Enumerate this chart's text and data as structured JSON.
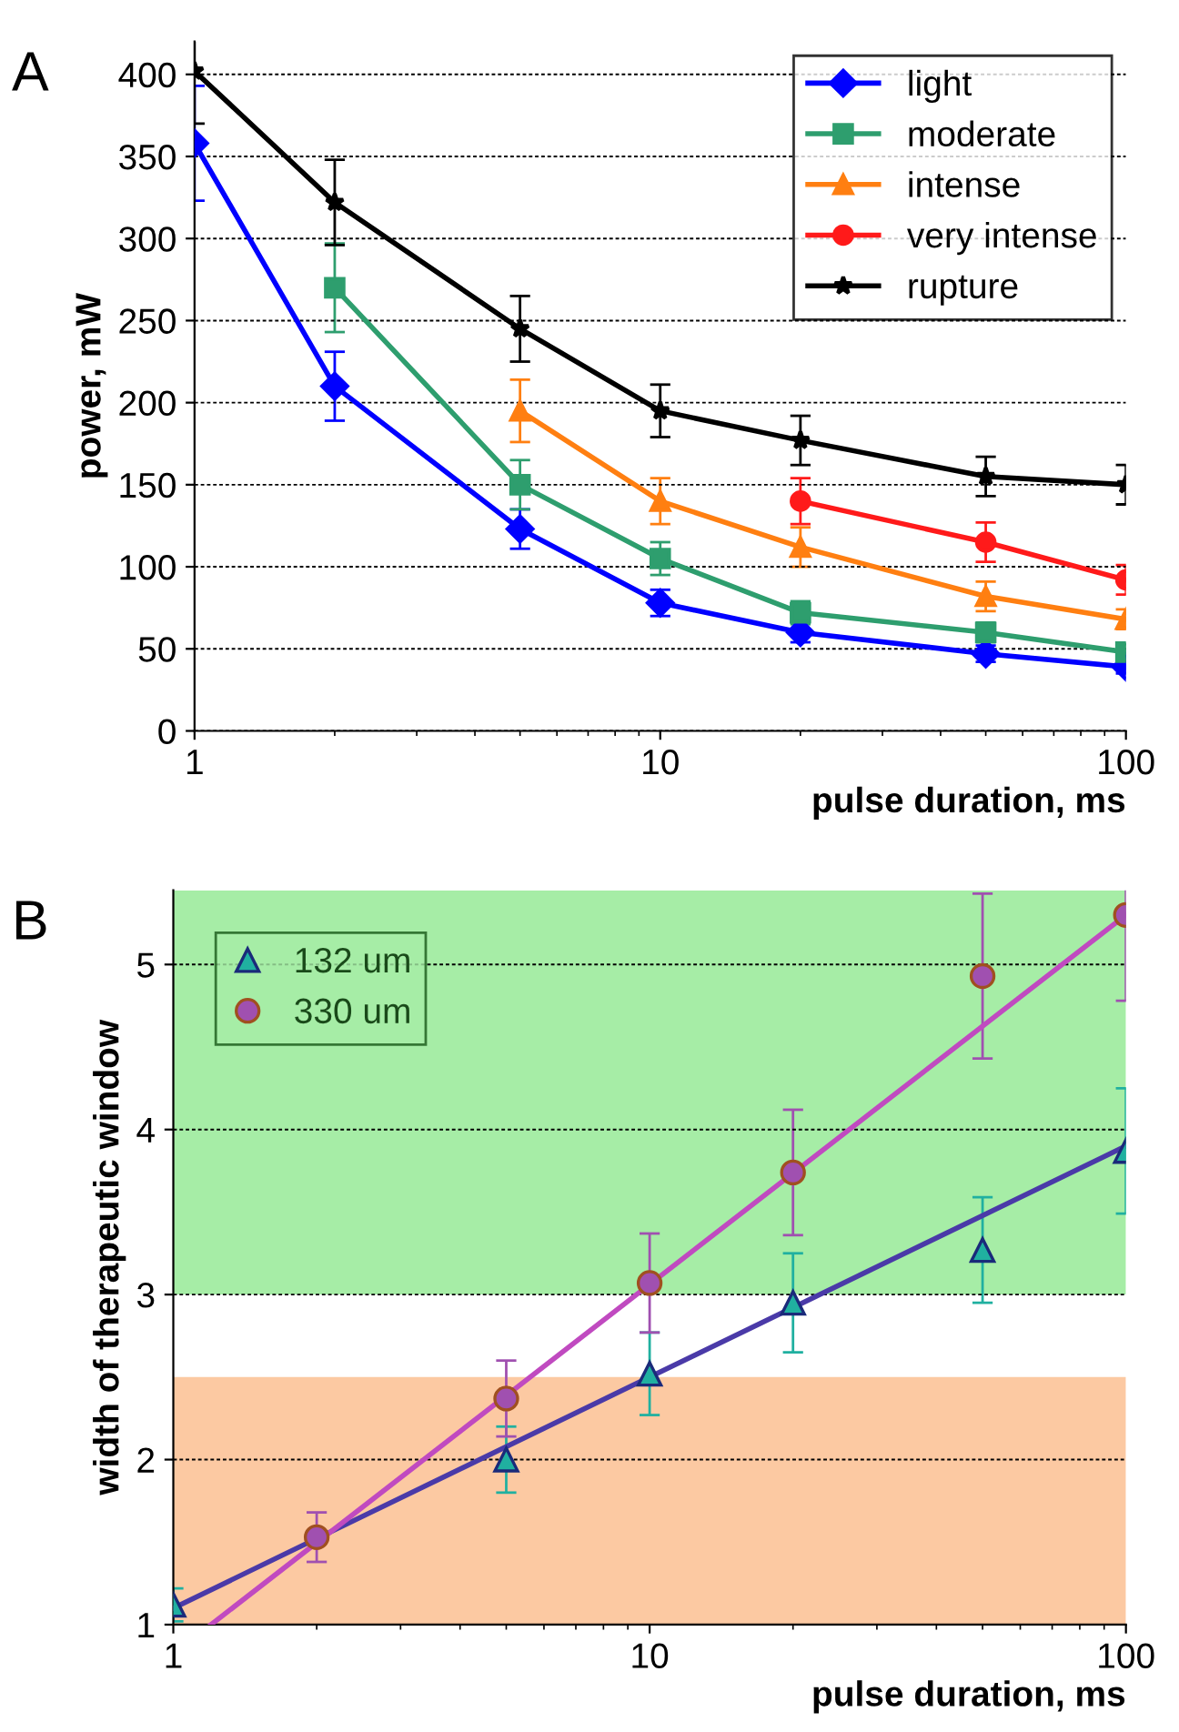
{
  "chart_data": [
    {
      "type": "line",
      "xlabel": "pulse duration, ms",
      "ylabel": "power, mW",
      "log": "x",
      "xlim": [
        1,
        100
      ],
      "xticks": [
        1,
        10,
        100
      ],
      "ylim": [
        0,
        420
      ],
      "yticks": [
        0,
        50,
        100,
        150,
        200,
        250,
        300,
        350,
        400
      ],
      "grid": "y",
      "legend": "top right",
      "annotations": [
        "A"
      ],
      "x": [
        1,
        2,
        5,
        10,
        20,
        50,
        100
      ],
      "series": [
        {
          "name": "light",
          "color": "#0000ff",
          "marker": "diamond",
          "values": [
            358,
            210,
            123,
            78,
            60,
            47,
            39
          ],
          "errors": [
            35,
            21,
            12,
            8,
            6,
            5,
            4
          ]
        },
        {
          "name": "moderate",
          "color": "#2e9e6e",
          "marker": "square",
          "values": [
            null,
            270,
            150,
            105,
            72,
            60,
            48
          ],
          "errors": [
            null,
            27,
            15,
            10,
            7,
            6,
            5
          ]
        },
        {
          "name": "intense",
          "color": "#ff7f11",
          "marker": "triangle",
          "values": [
            null,
            null,
            195,
            140,
            112,
            82,
            68
          ],
          "errors": [
            null,
            null,
            19,
            14,
            12,
            9,
            6
          ]
        },
        {
          "name": "very intense",
          "color": "#ff1a1a",
          "marker": "circle",
          "values": [
            null,
            null,
            null,
            null,
            140,
            115,
            92
          ],
          "errors": [
            null,
            null,
            null,
            null,
            14,
            12,
            9
          ]
        },
        {
          "name": "rupture",
          "color": "#000000",
          "marker": "star",
          "values": [
            402,
            322,
            245,
            195,
            177,
            155,
            150
          ],
          "errors": [
            32,
            26,
            20,
            16,
            15,
            12,
            12
          ]
        }
      ]
    },
    {
      "type": "scatter",
      "xlabel": "pulse duration, ms",
      "ylabel": "width of therapeutic window",
      "log": "x",
      "xlim": [
        1,
        100
      ],
      "xticks": [
        1,
        10,
        100
      ],
      "ylim": [
        1,
        5.45
      ],
      "yticks": [
        1,
        2,
        3,
        4,
        5
      ],
      "grid": "y",
      "legend": "top left",
      "annotations": [
        "B"
      ],
      "bands": [
        {
          "axis": "y",
          "from": 3,
          "to": 5.45,
          "color": "#a6eda6"
        },
        {
          "axis": "y",
          "from": 1,
          "to": 2.5,
          "color": "#fcc9a2"
        }
      ],
      "x": [
        1,
        2,
        5,
        10,
        20,
        50,
        100
      ],
      "series": [
        {
          "type": "line",
          "color": "#4a3aa8",
          "x": [
            1,
            100
          ],
          "values": [
            1.1,
            3.9
          ]
        },
        {
          "type": "line",
          "color": "#c04ac0",
          "x": [
            1.2,
            100
          ],
          "values": [
            1.0,
            5.3
          ]
        },
        {
          "name": "132 um",
          "color": "#20b0a0",
          "marker": "triangle",
          "values": [
            1.12,
            null,
            2.0,
            2.52,
            2.95,
            3.27,
            3.87
          ],
          "errors": [
            0.1,
            null,
            0.2,
            0.25,
            0.3,
            0.32,
            0.38
          ]
        },
        {
          "name": "330 um",
          "color": "#a050b0",
          "marker": "circle",
          "values": [
            null,
            1.53,
            2.37,
            3.07,
            3.74,
            4.93,
            5.3
          ],
          "errors": [
            null,
            0.15,
            0.23,
            0.3,
            0.38,
            0.5,
            0.52
          ]
        }
      ]
    }
  ]
}
